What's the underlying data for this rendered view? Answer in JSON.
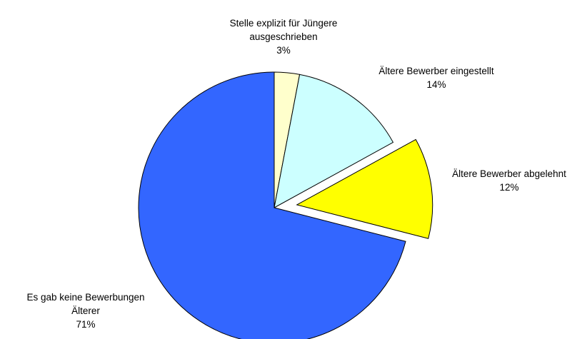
{
  "chart_data": {
    "type": "pie",
    "slices": [
      {
        "label": [
          "Stelle explizit für Jüngere",
          "ausgeschrieben"
        ],
        "value": 3,
        "value_label": "3%",
        "color": "#ffffcc",
        "exploded": false
      },
      {
        "label": [
          "Ältere Bewerber eingestellt"
        ],
        "value": 14,
        "value_label": "14%",
        "color": "#ccffff",
        "exploded": false
      },
      {
        "label": [
          "Ältere Bewerber abgelehnt"
        ],
        "value": 12,
        "value_label": "12%",
        "color": "#ffff00",
        "exploded": true
      },
      {
        "label": [
          "Es gab keine Bewerbungen",
          "Älterer"
        ],
        "value": 71,
        "value_label": "71%",
        "color": "#3366ff",
        "exploded": false
      }
    ]
  }
}
